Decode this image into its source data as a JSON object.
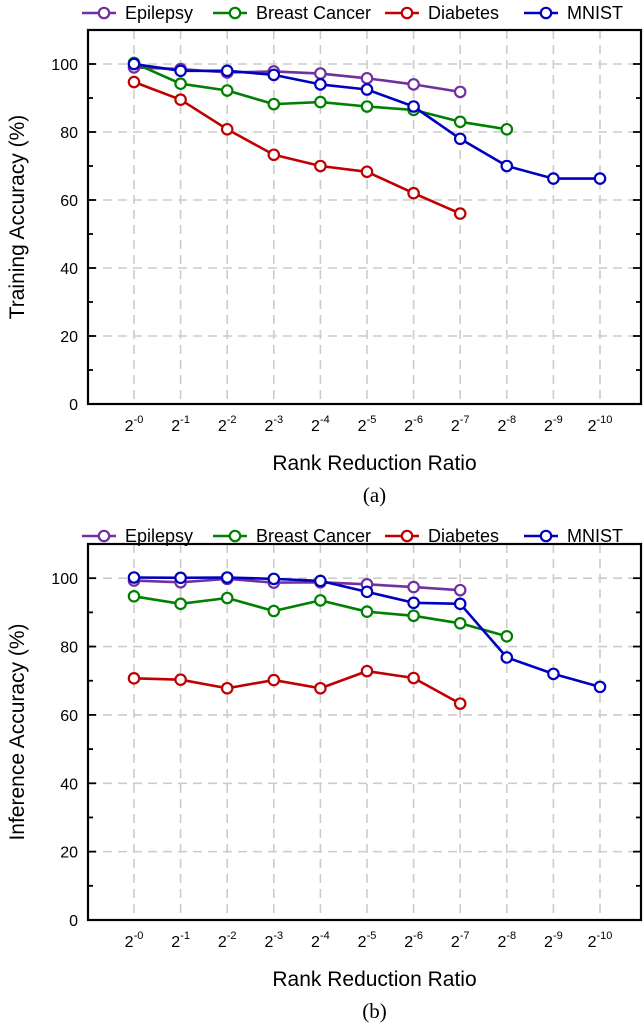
{
  "colors": {
    "Epilepsy": "#7030a0",
    "Breast Cancer": "#008000",
    "Diabetes": "#c00000",
    "MNIST": "#0000c0"
  },
  "chart_data": [
    {
      "type": "line",
      "caption": "(a)",
      "xlabel": "Rank Reduction Ratio",
      "ylabel": "Training Accuracy (%)",
      "ylim": [
        0,
        110
      ],
      "yticks": [
        0,
        20,
        40,
        60,
        80,
        100
      ],
      "x_base": "2",
      "x_exponents": [
        "-0",
        "-1",
        "-2",
        "-3",
        "-4",
        "-5",
        "-6",
        "-7",
        "-8",
        "-9",
        "-10"
      ],
      "grid": true,
      "legend": "top",
      "series": [
        {
          "name": "Epilepsy",
          "values": [
            99.0,
            98.5,
            97.5,
            97.8,
            97.2,
            95.8,
            94.0,
            91.8,
            null,
            null,
            null
          ]
        },
        {
          "name": "Breast Cancer",
          "values": [
            100.3,
            94.2,
            92.2,
            88.2,
            88.8,
            87.5,
            86.5,
            83.0,
            80.8,
            null,
            null
          ]
        },
        {
          "name": "Diabetes",
          "values": [
            94.7,
            89.5,
            80.8,
            73.3,
            70.0,
            68.3,
            62.0,
            56.0,
            null,
            null,
            null
          ]
        },
        {
          "name": "MNIST",
          "values": [
            100.0,
            98.0,
            98.0,
            96.8,
            94.0,
            92.5,
            87.5,
            78.0,
            70.0,
            66.3,
            66.3
          ]
        }
      ]
    },
    {
      "type": "line",
      "caption": "(b)",
      "xlabel": "Rank Reduction Ratio",
      "ylabel": "Inference Accuracy (%)",
      "ylim": [
        0,
        110
      ],
      "yticks": [
        0,
        20,
        40,
        60,
        80,
        100
      ],
      "x_base": "2",
      "x_exponents": [
        "-0",
        "-1",
        "-2",
        "-3",
        "-4",
        "-5",
        "-6",
        "-7",
        "-8",
        "-9",
        "-10"
      ],
      "grid": true,
      "legend": "top",
      "series": [
        {
          "name": "Epilepsy",
          "values": [
            99.3,
            98.8,
            99.8,
            98.7,
            98.8,
            98.2,
            97.4,
            96.5,
            null,
            null,
            null
          ]
        },
        {
          "name": "Breast Cancer",
          "values": [
            94.7,
            92.5,
            94.2,
            90.4,
            93.5,
            90.2,
            89.0,
            86.8,
            83.0,
            null,
            null
          ]
        },
        {
          "name": "Diabetes",
          "values": [
            70.7,
            70.3,
            67.8,
            70.2,
            67.8,
            72.8,
            70.8,
            63.3,
            null,
            null,
            null
          ]
        },
        {
          "name": "MNIST",
          "values": [
            100.2,
            100.1,
            100.2,
            99.8,
            99.2,
            96.0,
            92.8,
            92.5,
            76.8,
            72.0,
            68.2
          ]
        }
      ]
    }
  ]
}
